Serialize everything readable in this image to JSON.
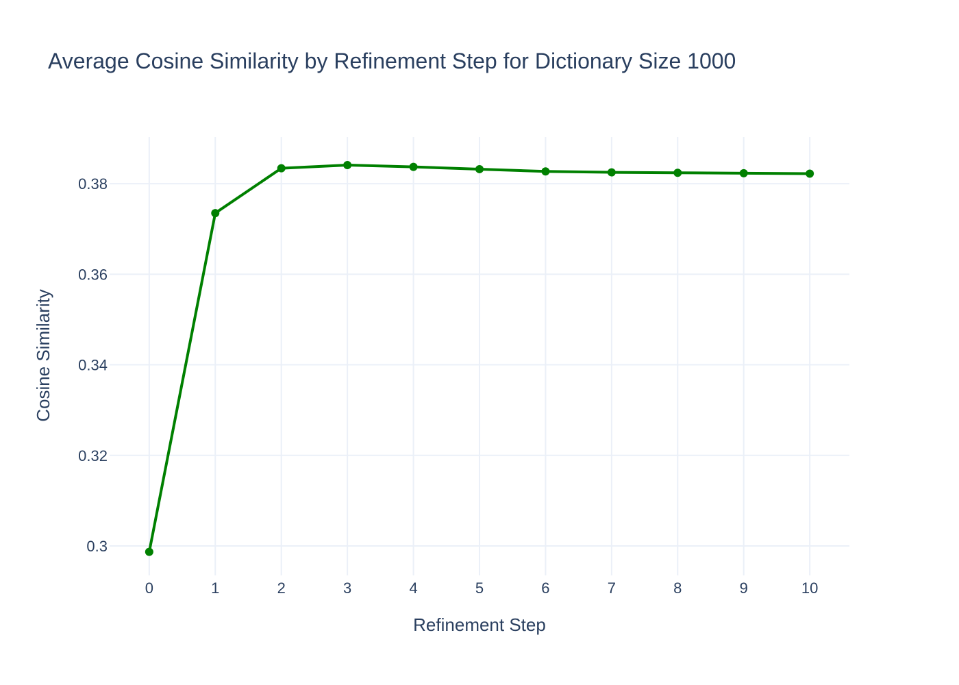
{
  "chart_data": {
    "type": "line",
    "title": "Average Cosine Similarity by Refinement Step for Dictionary Size 1000",
    "xlabel": "Refinement Step",
    "ylabel": "Cosine Similarity",
    "x": [
      0,
      1,
      2,
      3,
      4,
      5,
      6,
      7,
      8,
      9,
      10
    ],
    "x_tick_labels": [
      "0",
      "1",
      "2",
      "3",
      "4",
      "5",
      "6",
      "7",
      "8",
      "9",
      "10"
    ],
    "y_ticks": [
      0.3,
      0.32,
      0.34,
      0.36,
      0.38
    ],
    "y_tick_labels": [
      "0.3",
      "0.32",
      "0.34",
      "0.36",
      "0.38"
    ],
    "xlim": [
      -0.6,
      10.6
    ],
    "ylim": [
      0.2935,
      0.3903
    ],
    "grid": true,
    "legend": "none",
    "series": [
      {
        "color": "#008000",
        "values": [
          0.2987,
          0.3735,
          0.3834,
          0.3841,
          0.3837,
          0.3832,
          0.3827,
          0.3825,
          0.3824,
          0.3823,
          0.3822
        ]
      }
    ]
  }
}
